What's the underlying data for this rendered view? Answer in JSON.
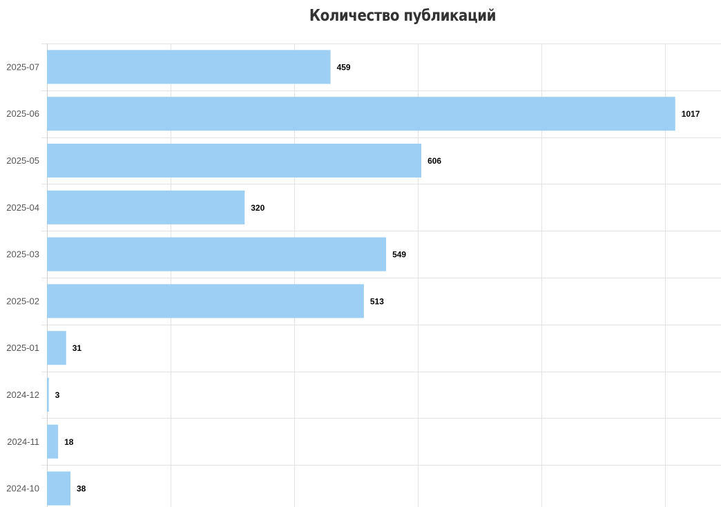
{
  "chart_data": {
    "type": "bar",
    "orientation": "horizontal",
    "title": "Количество публикаций",
    "categories": [
      "2025-07",
      "2025-06",
      "2025-05",
      "2025-04",
      "2025-03",
      "2025-02",
      "2025-01",
      "2024-12",
      "2024-11",
      "2024-10"
    ],
    "values": [
      459,
      1017,
      606,
      320,
      549,
      513,
      31,
      3,
      18,
      38
    ],
    "xlim": [
      0,
      1100
    ],
    "grid": true,
    "bar_color": "#9ccff3",
    "grid_color": "#e3e3e3",
    "axis_color": "#cfcfcf",
    "data_labels": true
  }
}
